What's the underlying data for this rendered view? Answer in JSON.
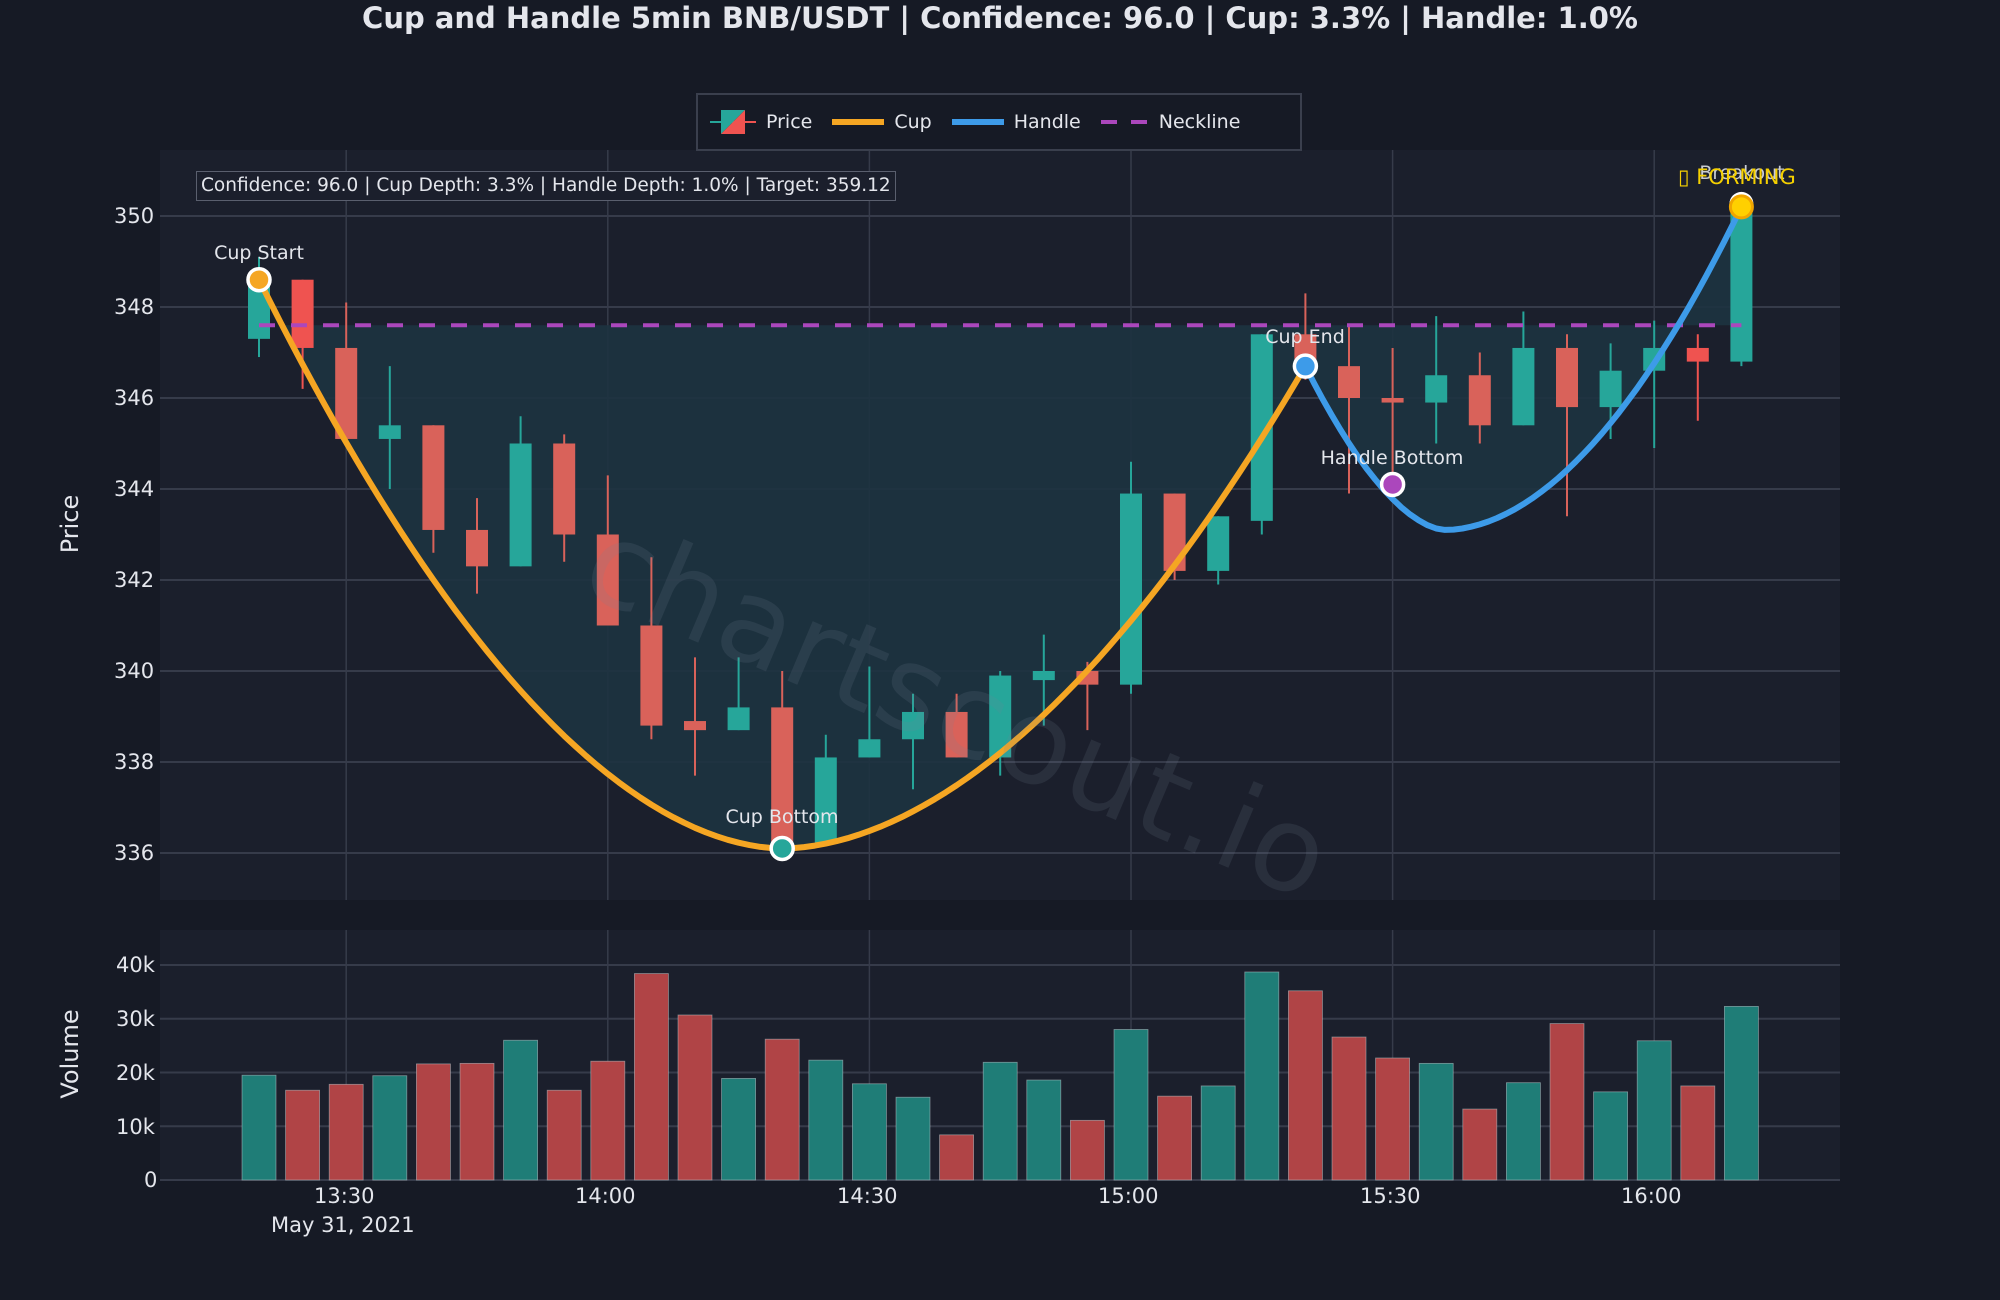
{
  "title": "Cup and Handle 5min BNB/USDT | Confidence: 96.0 | Cup: 3.3% | Handle: 1.0%",
  "legend": {
    "items": [
      {
        "label": "Price",
        "symbol": "candlestick"
      },
      {
        "label": "Cup",
        "symbol": "line",
        "color": "#f5a623"
      },
      {
        "label": "Handle",
        "symbol": "line",
        "color": "#3d9be9"
      },
      {
        "label": "Neckline",
        "symbol": "dashed-line",
        "color": "#ab47bc"
      }
    ]
  },
  "info_box": "Confidence: 96.0 | Cup Depth: 3.3% | Handle Depth: 1.0% | Target: 359.12",
  "annotations": {
    "cup_start": "Cup Start",
    "cup_bottom": "Cup Bottom",
    "cup_end": "Cup End",
    "handle_bottom": "Handle Bottom",
    "breakout": "Breakout",
    "status": "▯ FORMING"
  },
  "watermark": "chartscout.io",
  "axes": {
    "price_label": "Price",
    "volume_label": "Volume",
    "price_ticks": [
      "350",
      "348",
      "346",
      "344",
      "342",
      "340",
      "338",
      "336"
    ],
    "volume_ticks": [
      "40k",
      "30k",
      "20k",
      "10k",
      "0"
    ],
    "x_ticks": [
      "13:30",
      "14:00",
      "14:30",
      "15:00",
      "15:30",
      "16:00"
    ],
    "x_date": "May 31, 2021"
  },
  "colors": {
    "background": "#161a25",
    "panel": "#1b1f2c",
    "grid": "#363b4a",
    "up": "#26a69a",
    "down": "#ef5350",
    "up_volume": "#1f7d77",
    "down_volume": "#b04446",
    "cup": "#f5a623",
    "handle": "#3d9be9",
    "neckline": "#ab47bc",
    "fill": "#1d3340",
    "breakout": "#ffd000"
  },
  "chart_data": {
    "type": "candlestick",
    "title": "Cup and Handle 5min BNB/USDT | Confidence: 96.0 | Cup: 3.3% | Handle: 1.0%",
    "xlabel": "",
    "ylabel": "Price",
    "ylim": [
      335,
      351.5
    ],
    "grid": true,
    "legend_position": "top-center",
    "x": [
      "13:20",
      "13:25",
      "13:30",
      "13:35",
      "13:40",
      "13:45",
      "13:50",
      "13:55",
      "14:00",
      "14:05",
      "14:10",
      "14:15",
      "14:20",
      "14:25",
      "14:30",
      "14:35",
      "14:40",
      "14:45",
      "14:50",
      "14:55",
      "15:00",
      "15:05",
      "15:10",
      "15:15",
      "15:20",
      "15:25",
      "15:30",
      "15:35",
      "15:40",
      "15:45",
      "15:50",
      "15:55",
      "16:00",
      "16:05",
      "16:10"
    ],
    "open": [
      347.3,
      348.6,
      347.1,
      345.1,
      345.4,
      343.1,
      342.3,
      345.0,
      343.0,
      341.0,
      338.9,
      338.7,
      339.2,
      336.2,
      338.1,
      338.5,
      339.1,
      338.1,
      339.8,
      340.0,
      339.7,
      343.9,
      342.2,
      343.3,
      347.4,
      346.7,
      346.0,
      345.9,
      346.5,
      345.4,
      347.1,
      345.8,
      346.6,
      347.1,
      346.8
    ],
    "high": [
      349.1,
      348.6,
      348.1,
      346.7,
      345.4,
      343.8,
      345.6,
      345.2,
      344.3,
      342.5,
      340.3,
      340.3,
      340.0,
      338.6,
      340.1,
      339.5,
      339.5,
      340.0,
      340.8,
      340.2,
      344.6,
      343.9,
      343.4,
      347.4,
      348.3,
      347.6,
      347.1,
      347.8,
      347.0,
      347.9,
      347.4,
      347.2,
      347.7,
      347.4,
      350.4
    ],
    "low": [
      346.9,
      346.2,
      345.1,
      344.0,
      342.6,
      341.7,
      342.3,
      342.4,
      341.0,
      338.5,
      337.7,
      338.7,
      336.0,
      336.2,
      338.1,
      337.4,
      338.1,
      337.7,
      338.8,
      338.7,
      339.5,
      342.0,
      341.9,
      343.0,
      346.4,
      343.9,
      343.8,
      345.0,
      345.0,
      345.4,
      343.4,
      345.1,
      344.9,
      345.5,
      346.7
    ],
    "close": [
      348.6,
      347.1,
      345.1,
      345.4,
      343.1,
      342.3,
      345.0,
      343.0,
      341.0,
      338.8,
      338.7,
      339.2,
      336.2,
      338.1,
      338.5,
      339.1,
      338.1,
      339.9,
      340.0,
      339.7,
      343.9,
      342.2,
      343.4,
      347.4,
      346.7,
      346.0,
      345.9,
      346.5,
      345.4,
      347.1,
      345.8,
      346.6,
      347.1,
      346.8,
      350.2
    ],
    "volume": [
      19500,
      16700,
      17800,
      19400,
      21600,
      21700,
      26000,
      16700,
      22100,
      38400,
      30700,
      18900,
      26200,
      22300,
      17900,
      15400,
      8400,
      21900,
      18600,
      11100,
      28000,
      15600,
      17500,
      38700,
      35200,
      26600,
      22700,
      21700,
      13200,
      18100,
      29100,
      16400,
      25900,
      17500,
      32300
    ],
    "volume_ylabel": "Volume",
    "volume_ylim": [
      0,
      46000
    ],
    "overlays": {
      "neckline": 347.6,
      "cup": {
        "start": {
          "x": "13:20",
          "y": 348.6
        },
        "bottom": {
          "x": "14:20",
          "y": 336.1
        },
        "end": {
          "x": "15:20",
          "y": 346.7
        }
      },
      "handle": {
        "start": {
          "x": "15:20",
          "y": 346.7
        },
        "bottom": {
          "x": "15:30",
          "y": 344.1
        },
        "min": {
          "x": "15:40",
          "y": 343.1
        },
        "breakout": {
          "x": "16:10",
          "y": 350.2
        }
      },
      "target": 359.12,
      "status": "FORMING"
    }
  }
}
